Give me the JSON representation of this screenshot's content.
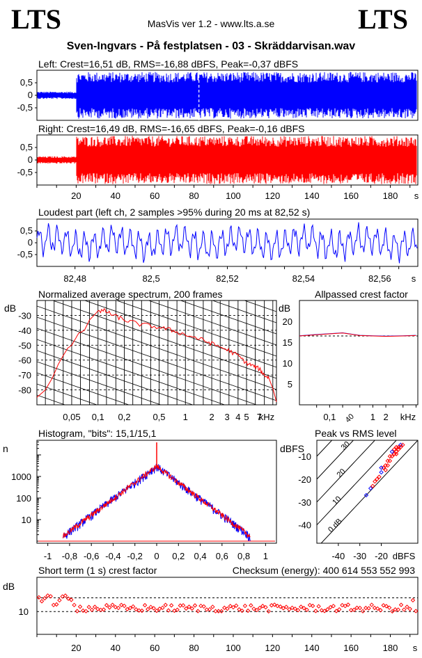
{
  "header": {
    "logo_left": "LTS",
    "logo_right": "LTS",
    "version": "MasVis ver 1.2 - www.lts.a.se",
    "file_title": "Sven-Ingvars - På festplatsen - 03 - Skräddarvisan.wav"
  },
  "colors": {
    "left": "#0000ff",
    "right": "#ff0000",
    "grid": "#000000"
  },
  "chart_data": [
    {
      "id": "left-waveform",
      "type": "line",
      "title": "Left: Crest=16,51 dB, RMS=-16,88 dBFS, Peak=-0,37 dBFS",
      "yticks": [
        "0,5",
        "0",
        "-0,5"
      ],
      "ylim": [
        -1,
        1
      ],
      "xlim": [
        0,
        194
      ],
      "marker_time_s": 82.52,
      "segments": [
        {
          "x": [
            0,
            20
          ],
          "amplitude": 0.15
        },
        {
          "x": [
            20,
            194
          ],
          "amplitude": 0.95
        }
      ]
    },
    {
      "id": "right-waveform",
      "type": "line",
      "title": "Right: Crest=16,49 dB, RMS=-16,65 dBFS, Peak=-0,16 dBFS",
      "yticks": [
        "0,5",
        "0",
        "-0,5"
      ],
      "ylim": [
        -1,
        1
      ],
      "xlim": [
        0,
        194
      ],
      "xticks": [
        "20",
        "40",
        "60",
        "80",
        "100",
        "120",
        "140",
        "160",
        "180"
      ],
      "xunit": "s",
      "segments": [
        {
          "x": [
            0,
            20
          ],
          "amplitude": 0.15
        },
        {
          "x": [
            20,
            194
          ],
          "amplitude": 0.98
        }
      ]
    },
    {
      "id": "loudest-part",
      "type": "line",
      "title": "Loudest part (left  ch, 2 samples >95% during 20 ms at 82,52 s)",
      "yticks": [
        "0,5",
        "0",
        "-0,5"
      ],
      "ylim": [
        -1,
        1
      ],
      "xlim": [
        82.47,
        82.57
      ],
      "xticks": [
        "82,48",
        "82,5",
        "82,52",
        "82,54",
        "82,56"
      ],
      "xunit": "s"
    },
    {
      "id": "average-spectrum",
      "type": "line",
      "title": "Normalized average spectrum, 200 frames",
      "ylabel": "dB",
      "yticks": [
        "-30",
        "-40",
        "-50",
        "-60",
        "-70",
        "-80"
      ],
      "ylim": [
        -90,
        -20
      ],
      "xticks": [
        "0,05",
        "0,1",
        "0,2",
        "0,5",
        "1",
        "2",
        "3",
        "4",
        "5",
        "7"
      ],
      "xunit": "kHz",
      "xlim_khz": [
        0.02,
        11
      ],
      "points": [
        [
          0.02,
          -85
        ],
        [
          0.025,
          -80
        ],
        [
          0.03,
          -72
        ],
        [
          0.035,
          -63
        ],
        [
          0.04,
          -57
        ],
        [
          0.045,
          -52
        ],
        [
          0.05,
          -50
        ],
        [
          0.06,
          -42
        ],
        [
          0.07,
          -40
        ],
        [
          0.08,
          -33
        ],
        [
          0.09,
          -30
        ],
        [
          0.1,
          -27
        ],
        [
          0.12,
          -27
        ],
        [
          0.15,
          -30
        ],
        [
          0.2,
          -33
        ],
        [
          0.3,
          -36
        ],
        [
          0.5,
          -38
        ],
        [
          0.7,
          -40
        ],
        [
          1,
          -43
        ],
        [
          1.5,
          -46
        ],
        [
          2,
          -49
        ],
        [
          3,
          -53
        ],
        [
          4,
          -57
        ],
        [
          5,
          -62
        ],
        [
          6,
          -64
        ],
        [
          7,
          -66
        ],
        [
          8,
          -70
        ],
        [
          9,
          -72
        ],
        [
          10,
          -79
        ],
        [
          11,
          -88
        ]
      ]
    },
    {
      "id": "allpassed-crest",
      "type": "line",
      "title": "Allpassed crest factor",
      "ylabel": "dB",
      "yticks": [
        "20",
        "15",
        "10",
        "5"
      ],
      "ylim": [
        0,
        25
      ],
      "xticks": [
        "0,1",
        "1",
        "2"
      ],
      "xunit": "kHz",
      "series": [
        {
          "points": [
            [
              0.02,
              16.5
            ],
            [
              0.05,
              16.8
            ],
            [
              0.1,
              17.0
            ],
            [
              0.2,
              17.2
            ],
            [
              0.5,
              16.6
            ],
            [
              1,
              16.5
            ],
            [
              2,
              16.4
            ],
            [
              5,
              16.5
            ],
            [
              10,
              16.6
            ]
          ]
        }
      ]
    },
    {
      "id": "histogram",
      "type": "line",
      "title": "Histogram, \"bits\": 15,1/15,1",
      "ylabel": "n",
      "yscale": "log",
      "yticks": [
        "1000",
        "100",
        "10"
      ],
      "xticks": [
        "-1",
        "-0,8",
        "-0,6",
        "-0,4",
        "-0,2",
        "0",
        "0,2",
        "0,4",
        "0,6",
        "0,8",
        "1"
      ],
      "xlim": [
        -1.1,
        1.1
      ]
    },
    {
      "id": "peak-vs-rms",
      "type": "scatter",
      "title": "Peak vs RMS level",
      "ylabel": "dBFS",
      "xlabel": "dBFS",
      "yticks": [
        "-10",
        "-20",
        "-30",
        "-40"
      ],
      "xticks": [
        "-40",
        "-30",
        "-20"
      ],
      "xlim": [
        -50,
        -3
      ],
      "ylim": [
        -48,
        -3
      ],
      "crest_labels": [
        "40",
        "30",
        "20",
        "10",
        "0 dB"
      ],
      "points": [
        [
          -25,
          -24
        ],
        [
          -24,
          -23
        ],
        [
          -23,
          -21
        ],
        [
          -22,
          -20
        ],
        [
          -21,
          -19
        ],
        [
          -20,
          -17
        ],
        [
          -19,
          -15
        ],
        [
          -18,
          -14
        ],
        [
          -17,
          -12
        ],
        [
          -16,
          -10
        ],
        [
          -15,
          -8
        ],
        [
          -14,
          -7
        ],
        [
          -13,
          -6
        ],
        [
          -13,
          -8
        ],
        [
          -12,
          -6
        ],
        [
          -11,
          -5
        ],
        [
          -10,
          -5
        ],
        [
          -18,
          -16
        ],
        [
          -15,
          -10
        ],
        [
          -14,
          -9
        ],
        [
          -20,
          -15
        ],
        [
          -16,
          -12
        ],
        [
          -13,
          -9
        ],
        [
          -12,
          -7
        ],
        [
          -11,
          -6
        ],
        [
          -27,
          -27
        ],
        [
          -17,
          -14
        ]
      ]
    },
    {
      "id": "short-term-crest",
      "type": "scatter",
      "title": "Short term (1 s) crest factor",
      "ylabel": "dB",
      "yticks": [
        "10"
      ],
      "ylim": [
        0,
        25
      ],
      "xlim": [
        0,
        194
      ],
      "xticks": [
        "20",
        "40",
        "60",
        "80",
        "100",
        "120",
        "140",
        "160",
        "180"
      ],
      "xunit": "s",
      "checksum_label": "Checksum (energy):",
      "checksum": "400 614 553 552 993"
    }
  ]
}
